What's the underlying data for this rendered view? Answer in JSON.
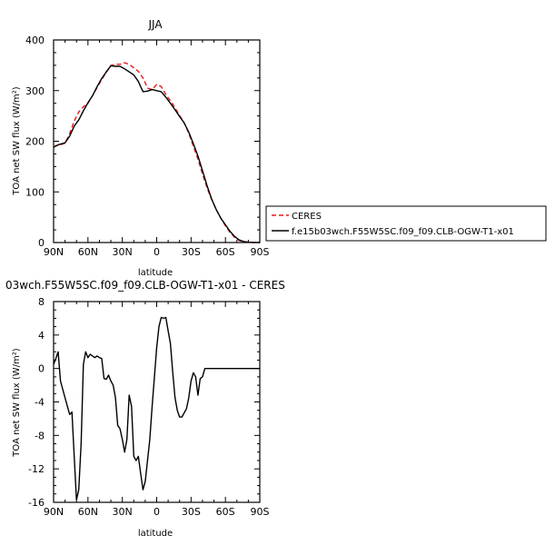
{
  "figure": {
    "top_title": "JJA",
    "bottom_title": "03wch.F55W5SC.f09_f09.CLB-OGW-T1-x01 - CERES",
    "legend": {
      "ceres_label": "CERES",
      "model_label": "f.e15b03wch.F55W5SC.f09_f09.CLB-OGW-T1-x01"
    },
    "colors": {
      "ceres": "#e31a1c",
      "model": "#000000"
    }
  },
  "chart_data": [
    {
      "type": "line",
      "title": "JJA",
      "xlabel": "latitude",
      "ylabel": "TOA net SW flux (W/m²)",
      "xlim": [
        90,
        -90
      ],
      "ylim": [
        0,
        400
      ],
      "xticks": [
        90,
        60,
        30,
        0,
        -30,
        -60,
        -90
      ],
      "xtick_labels": [
        "90N",
        "60N",
        "30N",
        "0",
        "30S",
        "60S",
        "90S"
      ],
      "yticks": [
        0,
        100,
        200,
        300,
        400
      ],
      "ytick_labels": [
        "0",
        "100",
        "200",
        "300",
        "400"
      ],
      "legend_position": "right",
      "series": [
        {
          "name": "CERES",
          "style": "dashed",
          "color": "#e31a1c",
          "x": [
            90,
            86,
            80,
            76,
            72,
            68,
            64,
            60,
            56,
            52,
            48,
            44,
            40,
            36,
            32,
            28,
            24,
            20,
            16,
            12,
            8,
            4,
            0,
            -4,
            -8,
            -12,
            -16,
            -20,
            -24,
            -28,
            -32,
            -36,
            -40,
            -44,
            -48,
            -52,
            -56,
            -60,
            -64,
            -68,
            -72,
            -76,
            -80,
            -84,
            -88,
            -90
          ],
          "y": [
            190,
            192,
            196,
            215,
            240,
            258,
            268,
            275,
            290,
            306,
            322,
            336,
            350,
            352,
            352,
            355,
            352,
            345,
            338,
            325,
            305,
            302,
            312,
            308,
            292,
            280,
            266,
            251,
            236,
            216,
            190,
            165,
            135,
            108,
            85,
            65,
            48,
            33,
            20,
            10,
            4,
            2,
            0.5,
            0.2,
            0.1,
            0
          ]
        },
        {
          "name": "f.e15b03wch.F55W5SC.f09_f09.CLB-OGW-T1-x01",
          "style": "solid",
          "color": "#000000",
          "x": [
            90,
            86,
            80,
            76,
            72,
            68,
            64,
            60,
            56,
            52,
            48,
            44,
            40,
            36,
            32,
            28,
            24,
            20,
            16,
            12,
            8,
            4,
            0,
            -4,
            -8,
            -12,
            -16,
            -20,
            -24,
            -28,
            -32,
            -36,
            -40,
            -44,
            -48,
            -52,
            -56,
            -60,
            -64,
            -68,
            -72,
            -76,
            -80,
            -84,
            -88,
            -90
          ],
          "y": [
            188,
            193,
            197,
            210,
            230,
            242,
            260,
            276,
            290,
            308,
            324,
            337,
            349,
            348,
            348,
            343,
            337,
            331,
            318,
            298,
            299,
            302,
            300,
            298,
            287,
            275,
            262,
            249,
            236,
            218,
            195,
            171,
            142,
            112,
            86,
            65,
            48,
            35,
            22,
            12,
            5,
            2,
            0.5,
            0.2,
            0.1,
            0
          ]
        }
      ]
    },
    {
      "type": "line",
      "title": "03wch.F55W5SC.f09_f09.CLB-OGW-T1-x01 - CERES",
      "xlabel": "latitude",
      "ylabel": "TOA net SW flux (W/m²)",
      "xlim": [
        90,
        -90
      ],
      "ylim": [
        -16,
        8
      ],
      "xticks": [
        90,
        60,
        30,
        0,
        -30,
        -60,
        -90
      ],
      "xtick_labels": [
        "90N",
        "60N",
        "30N",
        "0",
        "30S",
        "60S",
        "90S"
      ],
      "yticks": [
        -16,
        -12,
        -8,
        -4,
        0,
        4,
        8
      ],
      "ytick_labels": [
        "-16",
        "-12",
        "-8",
        "-4",
        "0",
        "4",
        "8"
      ],
      "series": [
        {
          "style": "solid",
          "color": "#000000",
          "x": [
            90,
            88,
            86,
            84,
            80,
            78,
            76,
            74,
            72,
            70,
            68,
            66,
            64,
            62,
            60,
            58,
            56,
            54,
            52,
            50,
            48,
            46,
            44,
            42,
            40,
            38,
            36,
            34,
            32,
            30,
            28,
            26,
            24,
            22,
            20,
            18,
            16,
            14,
            12,
            10,
            8,
            6,
            4,
            2,
            0,
            -2,
            -4,
            -6,
            -8,
            -10,
            -12,
            -14,
            -16,
            -18,
            -20,
            -22,
            -24,
            -26,
            -28,
            -30,
            -32,
            -34,
            -36,
            -38,
            -40,
            -42,
            -44,
            -46,
            -48,
            -50,
            -52,
            -54,
            -56,
            -58,
            -60,
            -62,
            -64,
            -66,
            -68,
            -70,
            -72,
            -74,
            -76,
            -78,
            -80,
            -84,
            -88,
            -90
          ],
          "y": [
            0.5,
            1.2,
            2.0,
            -1.5,
            -3.5,
            -4.5,
            -5.5,
            -5.2,
            -10.5,
            -15.7,
            -14.5,
            -9.0,
            0.5,
            2.0,
            1.3,
            1.7,
            1.5,
            1.3,
            1.5,
            1.3,
            1.2,
            -1.2,
            -1.3,
            -0.8,
            -1.5,
            -2.0,
            -3.5,
            -6.8,
            -7.2,
            -8.5,
            -10.0,
            -8.5,
            -3.2,
            -4.5,
            -10.5,
            -11.0,
            -10.5,
            -12.5,
            -14.5,
            -13.5,
            -11.0,
            -8.5,
            -4.5,
            -1.0,
            2.5,
            5.0,
            6.1,
            6.0,
            6.1,
            4.5,
            3.0,
            -0.5,
            -3.5,
            -5.0,
            -5.8,
            -5.8,
            -5.3,
            -4.8,
            -3.5,
            -1.5,
            -0.5,
            -1.0,
            -3.2,
            -1.2,
            -1.0,
            0.0,
            0.0,
            0.0,
            0.0,
            0.0,
            0.0,
            0.0,
            0.0,
            0.0,
            0.0,
            0.0,
            0.0,
            0.0,
            0.0,
            0.0,
            0.0,
            0.0,
            0.0,
            0.0,
            0.0,
            0.0,
            0.0,
            0.0
          ]
        }
      ]
    }
  ]
}
